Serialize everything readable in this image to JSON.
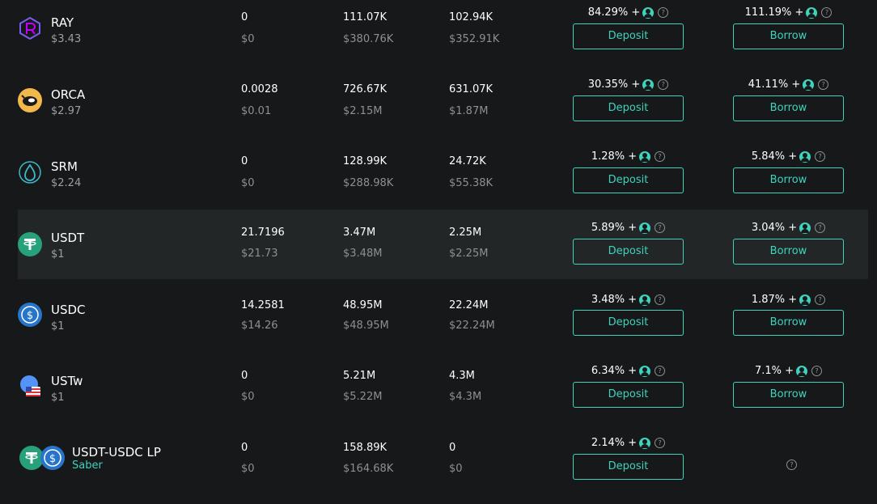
{
  "rows": [
    {
      "symbol": "RAY",
      "price": "$3.43",
      "col1": {
        "amount": "0",
        "usd": "$0"
      },
      "col2": {
        "amount": "111.07K",
        "usd": "$380.76K"
      },
      "col3": {
        "amount": "102.94K",
        "usd": "$352.91K"
      },
      "deposit_apy": "84.29% +",
      "deposit_label": "Deposit",
      "borrow_apy": "111.19% +",
      "borrow_label": "Borrow",
      "icon": "raydium-icon",
      "icon_color": "#6a5acd"
    },
    {
      "symbol": "ORCA",
      "price": "$2.97",
      "col1": {
        "amount": "0.0028",
        "usd": "$0.01"
      },
      "col2": {
        "amount": "726.67K",
        "usd": "$2.15M"
      },
      "col3": {
        "amount": "631.07K",
        "usd": "$1.87M"
      },
      "deposit_apy": "30.35% +",
      "deposit_label": "Deposit",
      "borrow_apy": "41.11% +",
      "borrow_label": "Borrow",
      "icon": "orca-icon",
      "icon_color": "#f2b84b"
    },
    {
      "symbol": "SRM",
      "price": "$2.24",
      "col1": {
        "amount": "0",
        "usd": "$0"
      },
      "col2": {
        "amount": "128.99K",
        "usd": "$288.98K"
      },
      "col3": {
        "amount": "24.72K",
        "usd": "$55.38K"
      },
      "deposit_apy": "1.28% +",
      "deposit_label": "Deposit",
      "borrow_apy": "5.84% +",
      "borrow_label": "Borrow",
      "icon": "serum-icon",
      "icon_color": "#3fb9cc"
    },
    {
      "symbol": "USDT",
      "price": "$1",
      "col1": {
        "amount": "21.7196",
        "usd": "$21.73"
      },
      "col2": {
        "amount": "3.47M",
        "usd": "$3.48M"
      },
      "col3": {
        "amount": "2.25M",
        "usd": "$2.25M"
      },
      "deposit_apy": "5.89% +",
      "deposit_label": "Deposit",
      "borrow_apy": "3.04% +",
      "borrow_label": "Borrow",
      "icon": "tether-icon",
      "icon_color": "#26a17b"
    },
    {
      "symbol": "USDC",
      "price": "$1",
      "col1": {
        "amount": "14.2581",
        "usd": "$14.26"
      },
      "col2": {
        "amount": "48.95M",
        "usd": "$48.95M"
      },
      "col3": {
        "amount": "22.24M",
        "usd": "$22.24M"
      },
      "deposit_apy": "3.48% +",
      "deposit_label": "Deposit",
      "borrow_apy": "1.87% +",
      "borrow_label": "Borrow",
      "icon": "usdc-icon",
      "icon_color": "#2775ca"
    },
    {
      "symbol": "USTw",
      "price": "$1",
      "col1": {
        "amount": "0",
        "usd": "$0"
      },
      "col2": {
        "amount": "5.21M",
        "usd": "$5.22M"
      },
      "col3": {
        "amount": "4.3M",
        "usd": "$4.3M"
      },
      "deposit_apy": "6.34% +",
      "deposit_label": "Deposit",
      "borrow_apy": "7.1% +",
      "borrow_label": "Borrow",
      "icon": "ust-icon",
      "icon_color": "#5493f7"
    },
    {
      "symbol": "USDT-USDC LP",
      "price": "Saber",
      "col1": {
        "amount": "0",
        "usd": "$0"
      },
      "col2": {
        "amount": "158.89K",
        "usd": "$164.68K"
      },
      "col3": {
        "amount": "0",
        "usd": "$0"
      },
      "deposit_apy": "2.14% +",
      "deposit_label": "Deposit",
      "icon": "lp-icon"
    }
  ],
  "colors": {
    "accent": "#3fd3bd",
    "background": "#161819",
    "highlight_row": "#222626",
    "muted_text": "#8b9193"
  }
}
